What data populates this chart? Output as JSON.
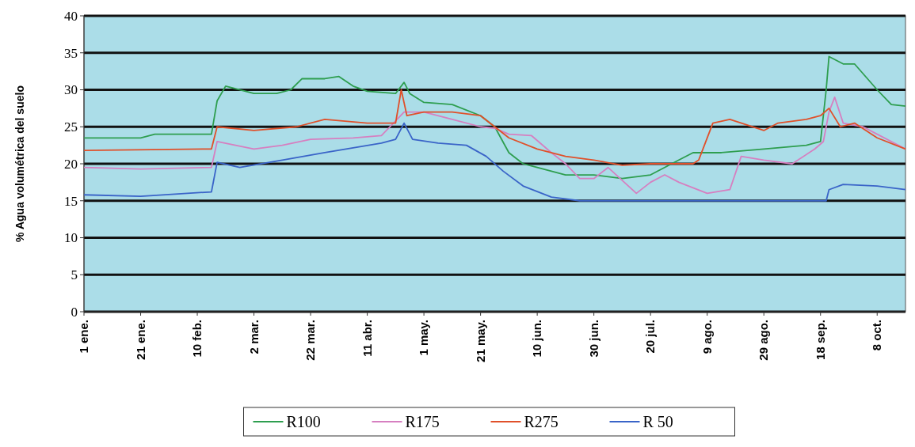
{
  "chart_data": {
    "type": "line",
    "ylabel": "% Agua volumétrica del suelo",
    "ylim": [
      0,
      40
    ],
    "yticks": [
      0,
      5,
      10,
      15,
      20,
      25,
      30,
      35,
      40
    ],
    "xlim": [
      "--01-01",
      "--10-18"
    ],
    "xticks": [
      {
        "value": "--01-01",
        "label": "1 ene."
      },
      {
        "value": "--01-21",
        "label": "21 ene."
      },
      {
        "value": "--02-10",
        "label": "10 feb."
      },
      {
        "value": "--03-02",
        "label": "2 mar."
      },
      {
        "value": "--03-22",
        "label": "22 mar."
      },
      {
        "value": "--04-11",
        "label": "11 abr."
      },
      {
        "value": "--05-01",
        "label": "1 may."
      },
      {
        "value": "--05-21",
        "label": "21 may."
      },
      {
        "value": "--06-10",
        "label": "10 jun."
      },
      {
        "value": "--06-30",
        "label": "30 jun."
      },
      {
        "value": "--07-20",
        "label": "20 jul."
      },
      {
        "value": "--08-09",
        "label": "9 ago."
      },
      {
        "value": "--08-29",
        "label": "29 ago."
      },
      {
        "value": "--09-18",
        "label": "18 sep."
      },
      {
        "value": "--10-08",
        "label": "8 oct."
      }
    ],
    "grid": "y",
    "legend": "bottom",
    "series": [
      {
        "name": "R100",
        "color": "#2e9e4f",
        "x": [
          "--01-01",
          "--01-21",
          "--01-26",
          "--02-15",
          "--02-17",
          "--02-20",
          "--03-02",
          "--03-10",
          "--03-15",
          "--03-19",
          "--03-27",
          "--04-01",
          "--04-06",
          "--04-11",
          "--04-21",
          "--04-24",
          "--04-26",
          "--05-01",
          "--05-11",
          "--05-21",
          "--05-26",
          "--05-31",
          "--06-05",
          "--06-10",
          "--06-20",
          "--06-30",
          "--07-10",
          "--07-20",
          "--07-30",
          "--08-04",
          "--08-14",
          "--08-29",
          "--09-13",
          "--09-18",
          "--09-20",
          "--09-21",
          "--09-26",
          "--09-30",
          "--10-08",
          "--10-13",
          "--10-18"
        ],
        "values": [
          23.5,
          23.5,
          24,
          24,
          28.5,
          30.5,
          29.5,
          29.5,
          30,
          31.5,
          31.5,
          31.8,
          30.5,
          29.8,
          29.5,
          31,
          29.5,
          28.3,
          28,
          26.5,
          25,
          21.5,
          20,
          19.5,
          18.5,
          18.5,
          18,
          18.5,
          20.5,
          21.5,
          21.5,
          22,
          22.5,
          23,
          30,
          34.5,
          33.5,
          33.5,
          30,
          28,
          27.8
        ]
      },
      {
        "name": "R175",
        "color": "#d67fc0",
        "x": [
          "--01-01",
          "--01-21",
          "--02-15",
          "--02-17",
          "--03-02",
          "--03-12",
          "--03-22",
          "--04-06",
          "--04-16",
          "--04-19",
          "--04-24",
          "--05-01",
          "--05-11",
          "--05-21",
          "--05-26",
          "--05-31",
          "--06-08",
          "--06-15",
          "--06-20",
          "--06-25",
          "--06-30",
          "--07-05",
          "--07-15",
          "--07-20",
          "--07-25",
          "--07-30",
          "--08-09",
          "--08-17",
          "--08-21",
          "--08-29",
          "--09-08",
          "--09-16",
          "--09-19",
          "--09-21",
          "--09-23",
          "--09-26",
          "--10-03",
          "--10-08",
          "--10-18"
        ],
        "values": [
          19.5,
          19.3,
          19.5,
          23,
          22,
          22.5,
          23.3,
          23.5,
          23.8,
          25,
          27,
          27,
          26,
          25,
          24.8,
          24,
          23.8,
          21.5,
          20,
          18,
          18,
          19.5,
          16,
          17.5,
          18.5,
          17.5,
          16,
          16.5,
          21,
          20.5,
          20,
          22,
          23,
          27,
          29,
          25.5,
          25,
          24,
          22
        ]
      },
      {
        "name": "R275",
        "color": "#e0502a",
        "x": [
          "--01-01",
          "--02-15",
          "--02-17",
          "--03-02",
          "--03-17",
          "--03-27",
          "--04-11",
          "--04-21",
          "--04-23",
          "--04-25",
          "--05-01",
          "--05-11",
          "--05-21",
          "--05-31",
          "--06-10",
          "--06-20",
          "--06-30",
          "--07-10",
          "--07-20",
          "--08-04",
          "--08-06",
          "--08-11",
          "--08-17",
          "--08-29",
          "--09-03",
          "--09-13",
          "--09-18",
          "--09-21",
          "--09-25",
          "--09-30",
          "--10-08",
          "--10-18"
        ],
        "values": [
          21.8,
          22,
          25,
          24.5,
          25,
          26,
          25.5,
          25.5,
          30,
          26.5,
          27,
          27,
          26.5,
          23.5,
          22,
          21,
          20.5,
          19.8,
          20,
          20,
          20.5,
          25.5,
          26,
          24.5,
          25.5,
          26,
          26.5,
          27.5,
          25,
          25.5,
          23.5,
          22
        ]
      },
      {
        "name": "R 50",
        "color": "#3a64c8",
        "x": [
          "--01-01",
          "--01-21",
          "--02-15",
          "--02-17",
          "--02-25",
          "--03-12",
          "--03-27",
          "--04-16",
          "--04-21",
          "--04-24",
          "--04-27",
          "--05-06",
          "--05-16",
          "--05-23",
          "--05-29",
          "--06-05",
          "--06-15",
          "--06-25",
          "--07-20",
          "--08-29",
          "--09-20",
          "--09-21",
          "--09-26",
          "--10-08",
          "--10-18"
        ],
        "values": [
          15.8,
          15.6,
          16.2,
          20.2,
          19.5,
          20.5,
          21.5,
          22.8,
          23.3,
          25.5,
          23.3,
          22.8,
          22.5,
          21,
          19,
          17,
          15.5,
          15,
          15,
          15,
          15,
          16.5,
          17.2,
          17,
          16.5
        ]
      }
    ]
  }
}
